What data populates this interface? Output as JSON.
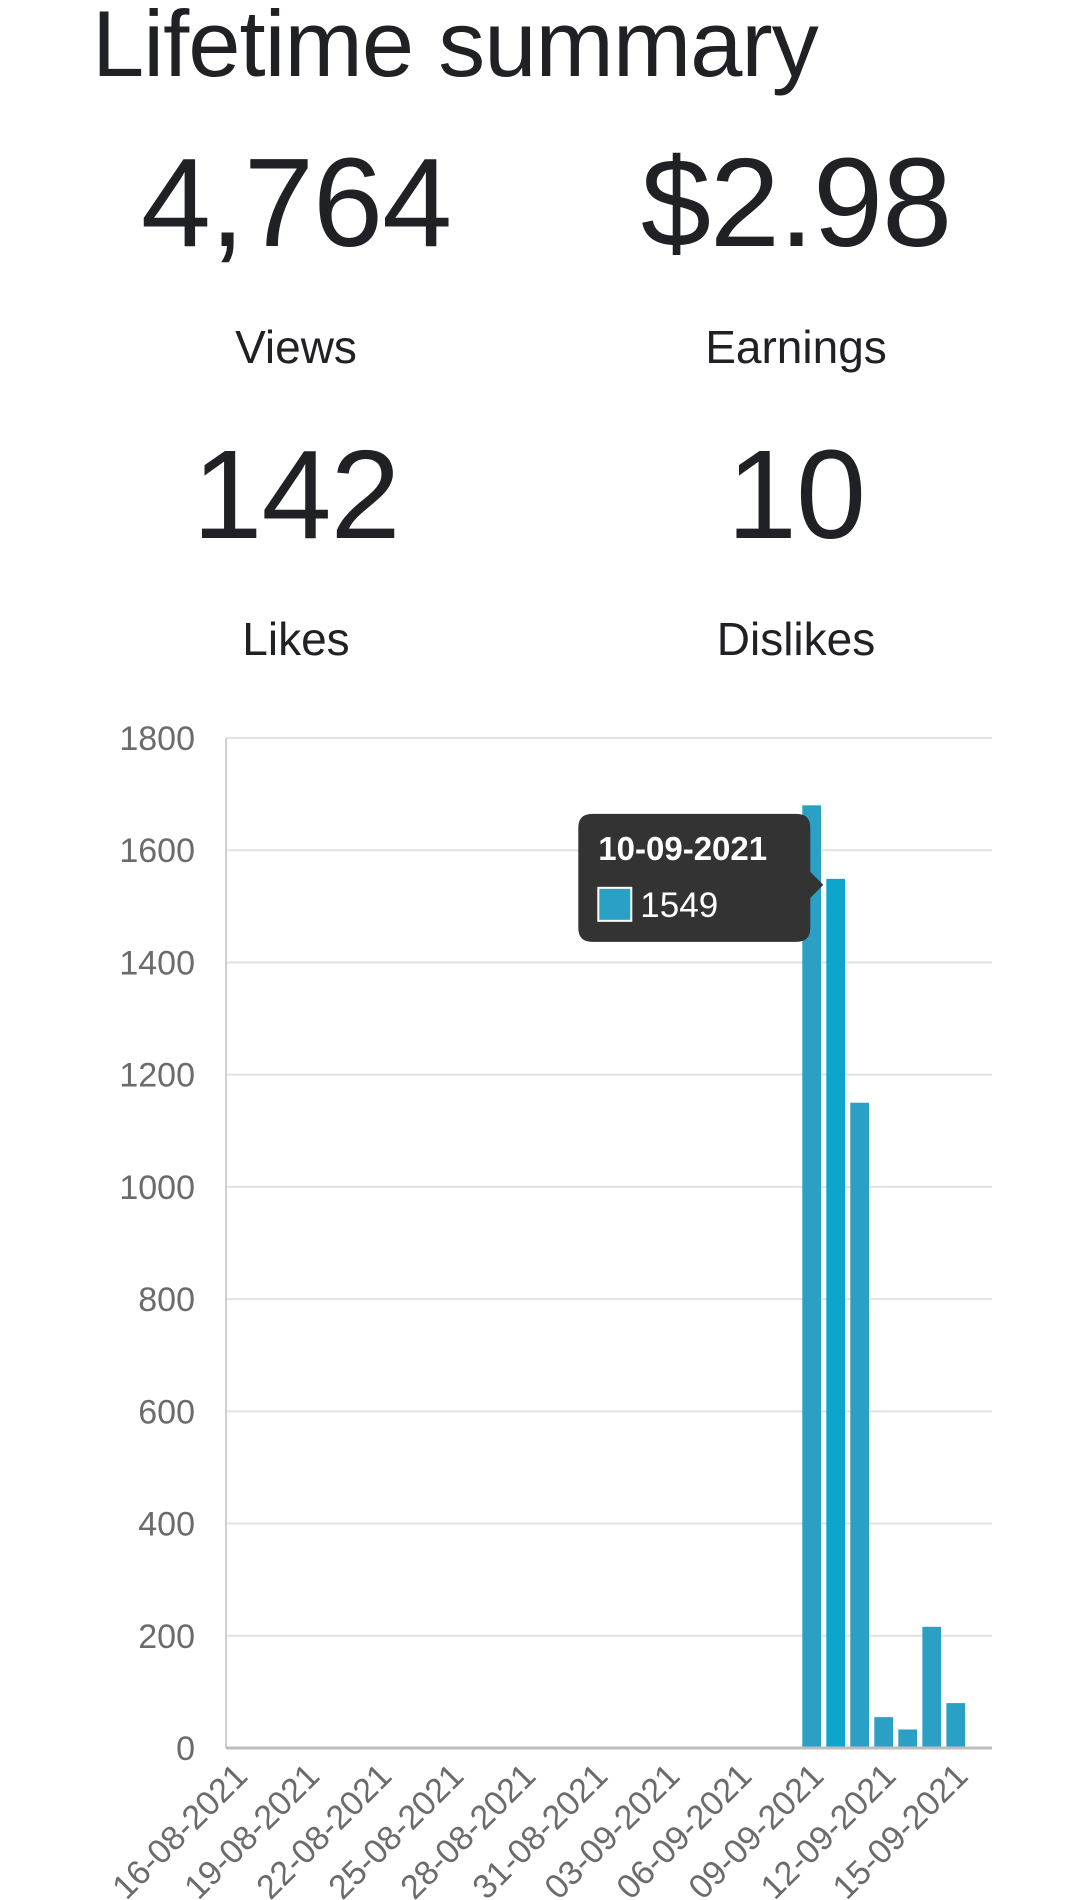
{
  "summary": {
    "title": "Lifetime summary",
    "views": {
      "value": "4,764",
      "label": "Views"
    },
    "earnings": {
      "value": "$2.98",
      "label": "Earnings"
    },
    "likes": {
      "value": "142",
      "label": "Likes"
    },
    "dislikes": {
      "value": "10",
      "label": "Dislikes"
    }
  },
  "chart_data": {
    "type": "bar",
    "title": "",
    "xlabel": "",
    "ylabel": "",
    "ylim": [
      0,
      1800
    ],
    "yticks": [
      0,
      200,
      400,
      600,
      800,
      1000,
      1200,
      1400,
      1600,
      1800
    ],
    "xtick_labels": [
      "16-08-2021",
      "19-08-2021",
      "22-08-2021",
      "25-08-2021",
      "28-08-2021",
      "31-08-2021",
      "03-09-2021",
      "06-09-2021",
      "09-09-2021",
      "12-09-2021",
      "15-09-2021"
    ],
    "grid": true,
    "bar_color": "#2aa1c4",
    "highlight_color": "#0ea5cd",
    "categories": [
      "16-08-2021",
      "17-08-2021",
      "18-08-2021",
      "19-08-2021",
      "20-08-2021",
      "21-08-2021",
      "22-08-2021",
      "23-08-2021",
      "24-08-2021",
      "25-08-2021",
      "26-08-2021",
      "27-08-2021",
      "28-08-2021",
      "29-08-2021",
      "30-08-2021",
      "31-08-2021",
      "01-09-2021",
      "02-09-2021",
      "03-09-2021",
      "04-09-2021",
      "05-09-2021",
      "06-09-2021",
      "07-09-2021",
      "08-09-2021",
      "09-09-2021",
      "10-09-2021",
      "11-09-2021",
      "12-09-2021",
      "13-09-2021",
      "14-09-2021",
      "15-09-2021",
      "16-09-2021"
    ],
    "values": [
      0,
      0,
      0,
      0,
      0,
      0,
      0,
      0,
      0,
      0,
      0,
      0,
      0,
      0,
      0,
      0,
      0,
      0,
      0,
      0,
      0,
      0,
      0,
      0,
      1680,
      1549,
      1150,
      55,
      33,
      216,
      80,
      0
    ],
    "tooltip": {
      "date": "10-09-2021",
      "value": "1549"
    }
  }
}
